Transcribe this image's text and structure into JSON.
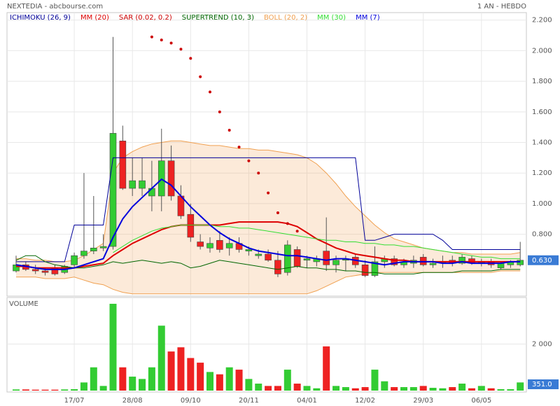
{
  "chart_data": [
    {
      "type": "candlestick",
      "title": "NEXTEDIA - abcbourse.com",
      "subtitle": "1 AN - HEBDO",
      "categories": [
        null,
        null,
        null,
        null,
        null,
        null,
        "17/07",
        null,
        null,
        null,
        null,
        null,
        "28/08",
        null,
        null,
        null,
        null,
        null,
        "09/10",
        null,
        null,
        null,
        null,
        null,
        "20/11",
        null,
        null,
        null,
        null,
        null,
        "04/01",
        null,
        null,
        null,
        null,
        null,
        "12/02",
        null,
        null,
        null,
        null,
        null,
        "29/03",
        null,
        null,
        null,
        null,
        null,
        "06/05",
        null,
        null,
        null,
        null
      ],
      "open": [
        0.56,
        0.6,
        0.57,
        0.56,
        0.58,
        0.55,
        0.6,
        0.66,
        0.69,
        0.71,
        0.72,
        1.41,
        1.1,
        1.1,
        1.05,
        1.05,
        1.28,
        1.05,
        0.93,
        0.75,
        0.71,
        0.76,
        0.71,
        0.74,
        0.69,
        0.66,
        0.67,
        0.63,
        0.55,
        0.7,
        0.63,
        0.62,
        0.69,
        0.6,
        0.63,
        0.65,
        0.6,
        0.53,
        0.62,
        0.64,
        0.6,
        0.61,
        0.65,
        0.6,
        0.61,
        0.63,
        0.61,
        0.64,
        0.61,
        0.62,
        0.58,
        0.6,
        0.6
      ],
      "high": [
        0.66,
        0.62,
        0.6,
        0.58,
        0.6,
        0.6,
        0.68,
        1.2,
        1.05,
        0.8,
        2.09,
        1.51,
        1.3,
        1.3,
        1.28,
        1.49,
        1.38,
        1.12,
        1.0,
        0.8,
        0.78,
        0.82,
        0.78,
        0.78,
        0.72,
        0.7,
        0.7,
        0.69,
        0.76,
        0.72,
        0.66,
        0.66,
        0.91,
        0.66,
        0.66,
        0.67,
        0.63,
        0.72,
        0.66,
        0.66,
        0.64,
        0.66,
        0.67,
        0.64,
        0.66,
        0.66,
        0.67,
        0.66,
        0.64,
        0.64,
        0.62,
        0.63,
        0.75
      ],
      "low": [
        0.55,
        0.56,
        0.54,
        0.53,
        0.53,
        0.54,
        0.58,
        0.64,
        0.67,
        0.69,
        0.7,
        1.09,
        1.05,
        1.05,
        0.95,
        0.95,
        1.02,
        0.9,
        0.75,
        0.7,
        0.68,
        0.68,
        0.66,
        0.68,
        0.66,
        0.64,
        0.62,
        0.52,
        0.53,
        0.58,
        0.58,
        0.59,
        0.56,
        0.55,
        0.56,
        0.58,
        0.52,
        0.52,
        0.58,
        0.59,
        0.58,
        0.58,
        0.59,
        0.58,
        0.58,
        0.59,
        0.6,
        0.6,
        0.59,
        0.58,
        0.57,
        0.58,
        0.59
      ],
      "close": [
        0.6,
        0.57,
        0.56,
        0.55,
        0.54,
        0.59,
        0.66,
        0.69,
        0.71,
        0.72,
        1.46,
        1.1,
        1.15,
        1.15,
        1.1,
        1.28,
        1.05,
        0.92,
        0.78,
        0.72,
        0.74,
        0.7,
        0.74,
        0.7,
        0.7,
        0.67,
        0.63,
        0.54,
        0.73,
        0.59,
        0.64,
        0.64,
        0.6,
        0.63,
        0.64,
        0.6,
        0.53,
        0.62,
        0.64,
        0.6,
        0.62,
        0.63,
        0.6,
        0.61,
        0.62,
        0.61,
        0.65,
        0.61,
        0.62,
        0.6,
        0.61,
        0.62,
        0.63
      ],
      "value_labels": [
        null,
        null,
        null,
        null,
        null,
        null,
        null,
        null,
        null,
        null,
        null,
        null,
        null,
        null,
        null,
        null,
        null,
        null,
        null,
        null,
        null,
        null,
        null,
        null,
        null,
        null,
        null,
        null,
        null,
        null,
        null,
        null,
        null,
        null,
        null,
        null,
        null,
        null,
        null,
        null,
        null,
        null,
        null,
        null,
        null,
        null,
        null,
        null,
        null,
        null,
        null,
        null,
        "0.630"
      ],
      "up_color": "#33cc33",
      "down_color": "#ee2222",
      "series": [
        {
          "name": "ICHIMOKU (26, 9)",
          "color": "#000099",
          "values": [
            0.62,
            0.62,
            0.62,
            0.62,
            0.62,
            0.62,
            0.86,
            0.86,
            0.86,
            0.86,
            1.3,
            1.3,
            1.3,
            1.3,
            1.3,
            1.3,
            1.3,
            1.3,
            1.3,
            1.3,
            1.3,
            1.3,
            1.3,
            1.3,
            1.3,
            1.3,
            1.3,
            1.3,
            1.3,
            1.3,
            1.3,
            1.3,
            1.3,
            1.3,
            1.3,
            1.3,
            0.76,
            0.76,
            0.78,
            0.8,
            0.8,
            0.8,
            0.8,
            0.8,
            0.76,
            0.7,
            0.7,
            0.7,
            0.7,
            0.7,
            0.7,
            0.7,
            0.7
          ]
        },
        {
          "name": "MM (20)",
          "color": "#dd0000",
          "values": [
            0.59,
            0.59,
            0.58,
            0.58,
            0.58,
            0.58,
            0.58,
            0.59,
            0.6,
            0.61,
            0.66,
            0.7,
            0.74,
            0.77,
            0.8,
            0.83,
            0.85,
            0.86,
            0.86,
            0.86,
            0.86,
            0.86,
            0.87,
            0.88,
            0.88,
            0.88,
            0.88,
            0.88,
            0.87,
            0.85,
            0.81,
            0.77,
            0.74,
            0.71,
            0.69,
            0.67,
            0.66,
            0.65,
            0.64,
            0.63,
            0.63,
            0.62,
            0.62,
            0.62,
            0.62,
            0.62,
            0.62,
            0.62,
            0.62,
            0.62,
            0.62,
            0.62,
            0.62
          ]
        },
        {
          "name": "SAR (0.02, 0.2)",
          "color": "#cc0000",
          "marker": "dots",
          "values": [
            null,
            null,
            null,
            null,
            null,
            null,
            null,
            null,
            null,
            null,
            null,
            null,
            null,
            null,
            2.09,
            2.07,
            2.05,
            2.01,
            1.95,
            1.83,
            1.73,
            1.6,
            1.48,
            1.37,
            1.28,
            1.2,
            1.07,
            0.94,
            0.87,
            0.82,
            null,
            null,
            null,
            null,
            null,
            null,
            null,
            null,
            null,
            null,
            null,
            null,
            null,
            null,
            null,
            null,
            null,
            null,
            null,
            null,
            null,
            null,
            null
          ]
        },
        {
          "name": "SUPERTREND (10, 3)",
          "color": "#006600",
          "values": [
            0.63,
            0.66,
            0.66,
            0.62,
            0.6,
            0.59,
            0.58,
            0.58,
            0.59,
            0.6,
            0.62,
            0.61,
            0.62,
            0.63,
            0.62,
            0.61,
            0.62,
            0.61,
            0.58,
            0.59,
            0.61,
            0.63,
            0.62,
            0.61,
            0.6,
            0.59,
            0.58,
            0.57,
            0.58,
            0.59,
            0.58,
            0.58,
            0.57,
            0.57,
            0.56,
            0.56,
            0.55,
            0.55,
            0.54,
            0.54,
            0.54,
            0.54,
            0.55,
            0.55,
            0.55,
            0.55,
            0.56,
            0.56,
            0.56,
            0.56,
            0.57,
            0.57,
            0.57
          ]
        },
        {
          "name": "BOLL (20, 2)",
          "color": "#f0a050",
          "upper": [
            0.64,
            0.64,
            0.63,
            0.63,
            0.62,
            0.62,
            0.63,
            0.66,
            0.7,
            0.74,
            1.2,
            1.3,
            1.34,
            1.37,
            1.39,
            1.4,
            1.41,
            1.41,
            1.4,
            1.39,
            1.38,
            1.38,
            1.37,
            1.36,
            1.36,
            1.35,
            1.35,
            1.34,
            1.33,
            1.32,
            1.3,
            1.26,
            1.2,
            1.13,
            1.05,
            0.98,
            0.92,
            0.86,
            0.81,
            0.77,
            0.75,
            0.73,
            0.71,
            0.7,
            0.69,
            0.68,
            0.68,
            0.67,
            0.67,
            0.67,
            0.67,
            0.67,
            0.68
          ],
          "lower": [
            0.52,
            0.52,
            0.52,
            0.51,
            0.51,
            0.51,
            0.52,
            0.5,
            0.48,
            0.47,
            0.44,
            0.42,
            0.41,
            0.41,
            0.41,
            0.41,
            0.41,
            0.41,
            0.41,
            0.41,
            0.41,
            0.41,
            0.41,
            0.41,
            0.41,
            0.41,
            0.41,
            0.41,
            0.41,
            0.41,
            0.41,
            0.43,
            0.46,
            0.49,
            0.52,
            0.53,
            0.54,
            0.55,
            0.55,
            0.55,
            0.55,
            0.55,
            0.55,
            0.55,
            0.55,
            0.55,
            0.55,
            0.55,
            0.55,
            0.55,
            0.56,
            0.56,
            0.56
          ]
        },
        {
          "name": "MM (30)",
          "color": "#33dd33",
          "values": [
            null,
            null,
            null,
            null,
            null,
            null,
            null,
            null,
            null,
            null,
            0.68,
            0.72,
            0.76,
            0.79,
            0.82,
            0.84,
            0.85,
            0.86,
            0.86,
            0.86,
            0.86,
            0.85,
            0.85,
            0.84,
            0.84,
            0.83,
            0.82,
            0.81,
            0.8,
            0.79,
            0.78,
            0.77,
            0.76,
            0.76,
            0.75,
            0.75,
            0.74,
            0.74,
            0.73,
            0.73,
            0.72,
            0.72,
            0.71,
            0.7,
            0.69,
            0.68,
            0.67,
            0.66,
            0.65,
            0.65,
            0.64,
            0.64,
            0.64
          ]
        },
        {
          "name": "MM (7)",
          "color": "#0000dd",
          "values": [
            0.6,
            0.59,
            0.58,
            0.57,
            0.57,
            0.57,
            0.58,
            0.6,
            0.62,
            0.64,
            0.78,
            0.9,
            0.98,
            1.04,
            1.1,
            1.16,
            1.12,
            1.05,
            0.98,
            0.92,
            0.86,
            0.81,
            0.77,
            0.74,
            0.71,
            0.69,
            0.68,
            0.67,
            0.66,
            0.66,
            0.65,
            0.64,
            0.63,
            0.64,
            0.64,
            0.63,
            0.62,
            0.61,
            0.6,
            0.61,
            0.62,
            0.62,
            0.62,
            0.62,
            0.61,
            0.61,
            0.62,
            0.61,
            0.61,
            0.61,
            0.61,
            0.62,
            0.62
          ]
        }
      ],
      "ylim": [
        0.4,
        2.24
      ],
      "yticks": [
        {
          "value": 0.8,
          "label": "0.800"
        },
        {
          "value": 1.0,
          "label": "1.000"
        },
        {
          "value": 1.2,
          "label": "1.200"
        },
        {
          "value": 1.4,
          "label": "1.400"
        },
        {
          "value": 1.6,
          "label": "1.600"
        },
        {
          "value": 1.8,
          "label": "1.800"
        },
        {
          "value": 2.0,
          "label": "2.000"
        },
        {
          "value": 2.2,
          "label": "2.200"
        }
      ],
      "grid": true
    },
    {
      "type": "bar",
      "title": "VOLUME",
      "values": [
        50,
        50,
        40,
        40,
        40,
        50,
        60,
        350,
        1000,
        200,
        3730,
        1000,
        600,
        500,
        1000,
        2790,
        1680,
        1860,
        1400,
        1200,
        800,
        700,
        1000,
        900,
        500,
        300,
        200,
        200,
        900,
        300,
        200,
        100,
        1900,
        200,
        150,
        100,
        150,
        900,
        400,
        150,
        150,
        150,
        200,
        120,
        100,
        150,
        300,
        100,
        200,
        100,
        60,
        60,
        351
      ],
      "value_labels": [
        null,
        null,
        null,
        null,
        null,
        null,
        null,
        null,
        null,
        null,
        null,
        null,
        null,
        null,
        null,
        null,
        null,
        null,
        null,
        null,
        null,
        null,
        null,
        null,
        null,
        null,
        null,
        null,
        null,
        null,
        null,
        null,
        null,
        null,
        null,
        null,
        null,
        null,
        null,
        null,
        null,
        null,
        null,
        null,
        null,
        null,
        null,
        null,
        null,
        null,
        null,
        null,
        "351.0"
      ],
      "ylim": [
        0,
        4000
      ],
      "yticks": [
        {
          "value": 2000,
          "label": "2 000"
        }
      ],
      "grid": true
    }
  ]
}
